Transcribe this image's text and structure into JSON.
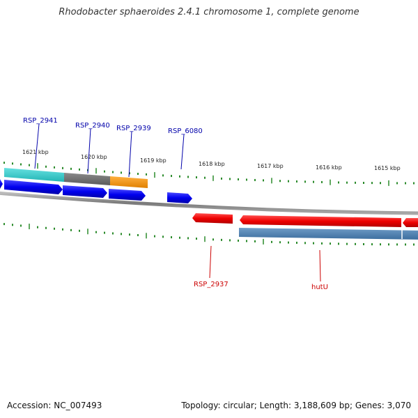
{
  "header": {
    "title": "Rhodobacter sphaeroides 2.4.1 chromosome 1, complete genome"
  },
  "footer": {
    "accession": "Accession: NC_007493",
    "summary": "Topology: circular; Length: 3,188,609 bp; Genes: 3,070"
  },
  "scale": {
    "tick_labels": [
      "1621 kbp",
      "1620 kbp",
      "1619 kbp",
      "1618 kbp",
      "1617 kbp",
      "1616 kbp",
      "1615 kbp"
    ]
  },
  "gene_labels": {
    "forward": [
      "RSP_2941",
      "RSP_2940",
      "RSP_2939",
      "RSP_6080"
    ],
    "reverse": [
      "RSP_2937",
      "hutU"
    ]
  },
  "colors": {
    "forward_gene": "#0000ee",
    "reverse_gene": "#ee0000",
    "forward_label": "#0000aa",
    "reverse_label": "#cc0000",
    "tick": "#2a8a2a",
    "backbone": "#888888",
    "annotation_cyan": "#33cccc",
    "annotation_gray": "#707070",
    "annotation_orange": "#ff9900",
    "annotation_steelblue": "#4a7fae"
  }
}
